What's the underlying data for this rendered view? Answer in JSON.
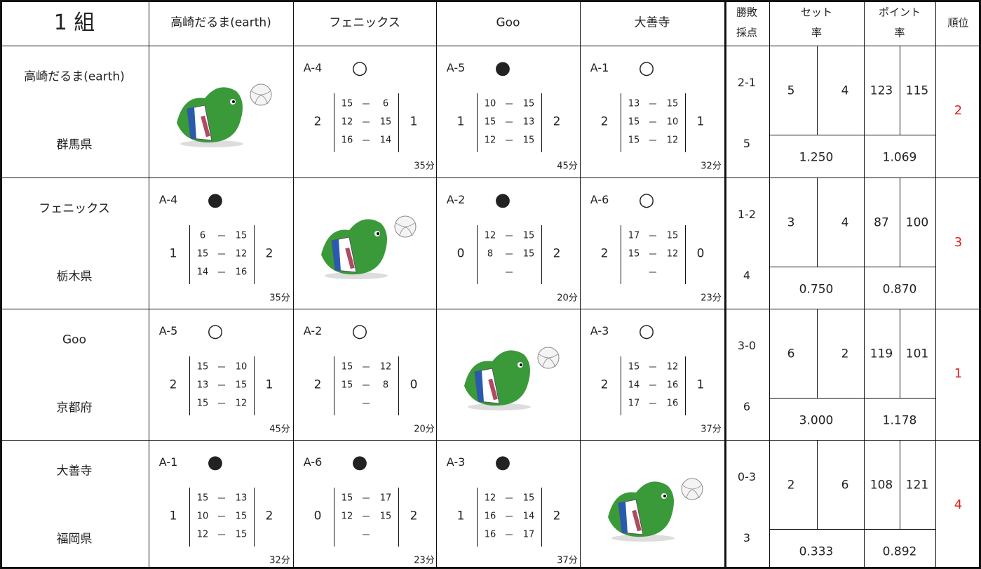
{
  "header": {
    "group": "1 組",
    "teams": [
      "高崎だるま(earth)",
      "フェニックス",
      "Goo",
      "大善寺"
    ],
    "record": [
      "勝敗",
      "採点"
    ],
    "set_rate": [
      "セット",
      "率"
    ],
    "point_rate": [
      "ポイント",
      "率"
    ],
    "rank": "順位"
  },
  "rows": [
    {
      "team": "高崎だるま(earth)",
      "pref": "群馬県",
      "cells": [
        null,
        {
          "match": "A-4",
          "result": "○",
          "sets_for": 2,
          "games": [
            [
              15,
              6
            ],
            [
              12,
              15
            ],
            [
              16,
              14
            ]
          ],
          "sets_against": 1,
          "time": "35分"
        },
        {
          "match": "A-5",
          "result": "●",
          "sets_for": 1,
          "games": [
            [
              10,
              15
            ],
            [
              15,
              13
            ],
            [
              12,
              15
            ]
          ],
          "sets_against": 2,
          "time": "45分"
        },
        {
          "match": "A-1",
          "result": "○",
          "sets_for": 2,
          "games": [
            [
              13,
              15
            ],
            [
              15,
              10
            ],
            [
              15,
              12
            ]
          ],
          "sets_against": 1,
          "time": "32分"
        }
      ],
      "win_loss": "2-1",
      "score": 5,
      "sets_won": 5,
      "sets_lost": 4,
      "points_won": 123,
      "points_lost": 115,
      "set_rate": "1.250",
      "point_rate": "1.069",
      "rank": 2
    },
    {
      "team": "フェニックス",
      "pref": "栃木県",
      "cells": [
        {
          "match": "A-4",
          "result": "●",
          "sets_for": 1,
          "games": [
            [
              6,
              15
            ],
            [
              15,
              12
            ],
            [
              14,
              16
            ]
          ],
          "sets_against": 2,
          "time": "35分"
        },
        null,
        {
          "match": "A-2",
          "result": "●",
          "sets_for": 0,
          "games": [
            [
              12,
              15
            ],
            [
              8,
              15
            ],
            null
          ],
          "sets_against": 2,
          "time": "20分"
        },
        {
          "match": "A-6",
          "result": "○",
          "sets_for": 2,
          "games": [
            [
              17,
              15
            ],
            [
              15,
              12
            ],
            null
          ],
          "sets_against": 0,
          "time": "23分"
        }
      ],
      "win_loss": "1-2",
      "score": 4,
      "sets_won": 3,
      "sets_lost": 4,
      "points_won": 87,
      "points_lost": 100,
      "set_rate": "0.750",
      "point_rate": "0.870",
      "rank": 3
    },
    {
      "team": "Goo",
      "pref": "京都府",
      "cells": [
        {
          "match": "A-5",
          "result": "○",
          "sets_for": 2,
          "games": [
            [
              15,
              10
            ],
            [
              13,
              15
            ],
            [
              15,
              12
            ]
          ],
          "sets_against": 1,
          "time": "45分"
        },
        {
          "match": "A-2",
          "result": "○",
          "sets_for": 2,
          "games": [
            [
              15,
              12
            ],
            [
              15,
              8
            ],
            null
          ],
          "sets_against": 0,
          "time": "20分"
        },
        null,
        {
          "match": "A-3",
          "result": "○",
          "sets_for": 2,
          "games": [
            [
              15,
              12
            ],
            [
              14,
              16
            ],
            [
              17,
              16
            ]
          ],
          "sets_against": 1,
          "time": "37分"
        }
      ],
      "win_loss": "3-0",
      "score": 6,
      "sets_won": 6,
      "sets_lost": 2,
      "points_won": 119,
      "points_lost": 101,
      "set_rate": "3.000",
      "point_rate": "1.178",
      "rank": 1
    },
    {
      "team": "大善寺",
      "pref": "福岡県",
      "cells": [
        {
          "match": "A-1",
          "result": "●",
          "sets_for": 1,
          "games": [
            [
              15,
              13
            ],
            [
              10,
              15
            ],
            [
              12,
              15
            ]
          ],
          "sets_against": 2,
          "time": "32分"
        },
        {
          "match": "A-6",
          "result": "●",
          "sets_for": 0,
          "games": [
            [
              15,
              17
            ],
            [
              12,
              15
            ],
            null
          ],
          "sets_against": 2,
          "time": "23分"
        },
        {
          "match": "A-3",
          "result": "●",
          "sets_for": 1,
          "games": [
            [
              12,
              15
            ],
            [
              16,
              14
            ],
            [
              16,
              17
            ]
          ],
          "sets_against": 2,
          "time": "37分"
        },
        null
      ],
      "win_loss": "0-3",
      "score": 3,
      "sets_won": 2,
      "sets_lost": 6,
      "points_won": 108,
      "points_lost": 121,
      "set_rate": "0.333",
      "point_rate": "0.892",
      "rank": 4
    }
  ]
}
